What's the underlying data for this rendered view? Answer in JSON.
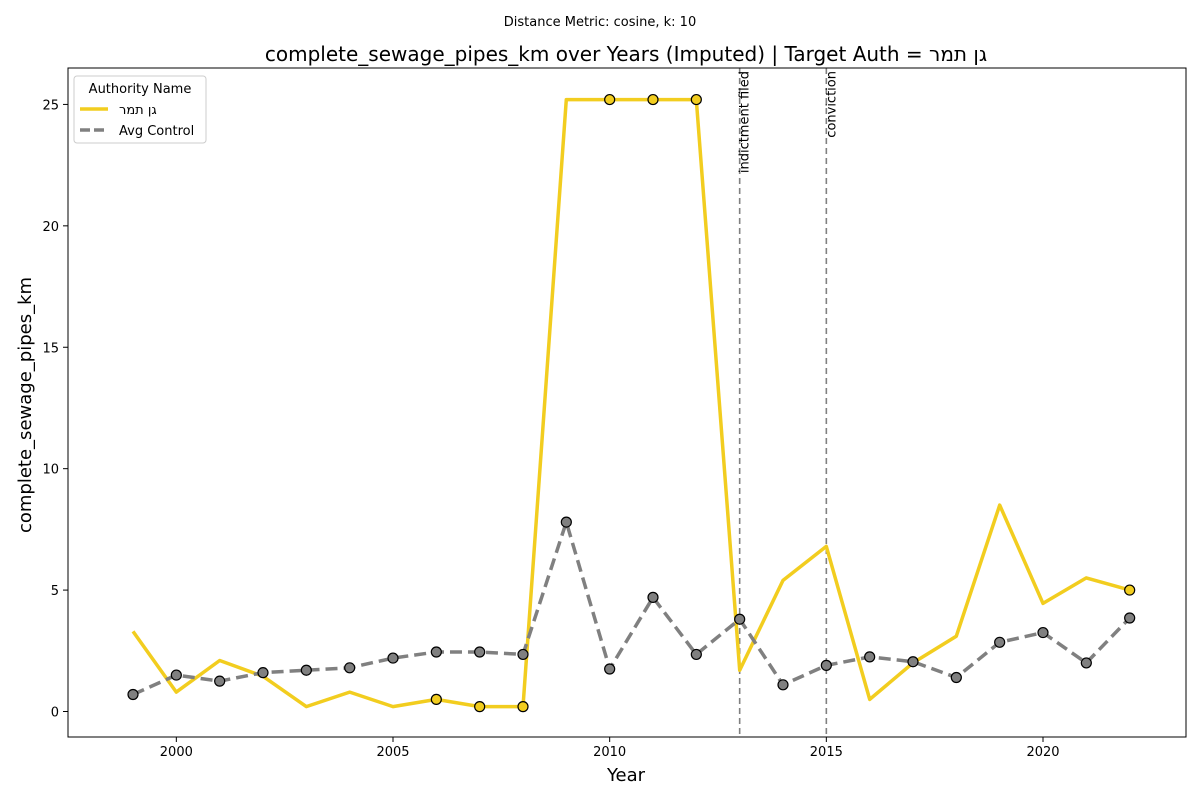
{
  "chart_data": {
    "type": "line",
    "suptitle": "Distance Metric: cosine, k: 10",
    "title": "complete_sewage_pipes_km over Years (Imputed) | Target Auth = גן תמר",
    "xlabel": "Year",
    "ylabel": "complete_sewage_pipes_km",
    "xlim": [
      1997.5,
      2023.3
    ],
    "ylim": [
      -1.05,
      26.5
    ],
    "xticks": [
      2000,
      2005,
      2010,
      2015,
      2020
    ],
    "yticks": [
      0,
      5,
      10,
      15,
      20,
      25
    ],
    "grid": false,
    "legend": {
      "title": "Authority Name",
      "placement": "top-left"
    },
    "series": [
      {
        "name": "גן תמר",
        "color": "#f2cd1f",
        "style": "solid",
        "x": [
          1999,
          2000,
          2001,
          2002,
          2003,
          2004,
          2005,
          2006,
          2007,
          2008,
          2009,
          2010,
          2011,
          2012,
          2013,
          2014,
          2015,
          2016,
          2017,
          2018,
          2019,
          2020,
          2021,
          2022
        ],
        "y": [
          3.3,
          0.8,
          2.1,
          1.45,
          0.2,
          0.8,
          0.2,
          0.5,
          0.2,
          0.2,
          25.2,
          25.2,
          25.2,
          25.2,
          1.7,
          5.4,
          6.8,
          0.5,
          2.0,
          3.1,
          8.5,
          4.45,
          5.5,
          5.0
        ],
        "observed_x": [
          2006,
          2007,
          2008,
          2010,
          2011,
          2012,
          2022
        ],
        "marker_color": "#f2cd1f"
      },
      {
        "name": "Avg Control",
        "color": "#808080",
        "style": "dashed",
        "x": [
          1999,
          2000,
          2001,
          2002,
          2003,
          2004,
          2005,
          2006,
          2007,
          2008,
          2009,
          2010,
          2011,
          2012,
          2013,
          2014,
          2015,
          2016,
          2017,
          2018,
          2019,
          2020,
          2021,
          2022
        ],
        "y": [
          0.7,
          1.5,
          1.25,
          1.6,
          1.7,
          1.8,
          2.2,
          2.45,
          2.45,
          2.35,
          7.8,
          1.75,
          4.7,
          2.35,
          3.8,
          1.1,
          1.9,
          2.25,
          2.05,
          1.4,
          2.85,
          3.25,
          2.0,
          3.85
        ],
        "observed_x": [
          1999,
          2000,
          2001,
          2002,
          2003,
          2004,
          2005,
          2006,
          2007,
          2008,
          2009,
          2010,
          2011,
          2012,
          2013,
          2014,
          2015,
          2016,
          2017,
          2018,
          2019,
          2020,
          2021,
          2022
        ],
        "marker_color": "#808080"
      }
    ],
    "vlines": [
      {
        "x": 2013,
        "label": "indictment filed"
      },
      {
        "x": 2015,
        "label": "conviction"
      }
    ]
  }
}
